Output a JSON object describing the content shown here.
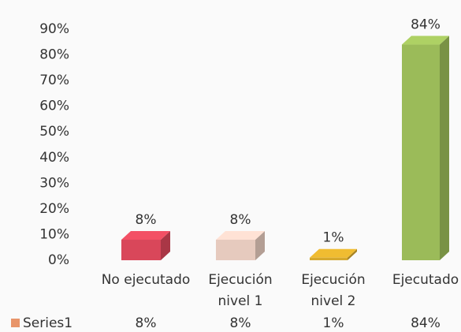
{
  "chart_data": {
    "type": "bar3d",
    "categories": [
      "No ejecutado",
      "Ejecución nivel 1",
      "Ejecución nivel 2",
      "Ejecutado"
    ],
    "series": [
      {
        "name": "Series1",
        "color": "#e8956a",
        "values": [
          8,
          8,
          1,
          84
        ],
        "value_labels": [
          "8%",
          "8%",
          "1%",
          "84%"
        ]
      }
    ],
    "colors": [
      "#d9475a",
      "#e6cabe",
      "#d6a82c",
      "#9bbb59"
    ],
    "ylim": [
      0,
      90
    ],
    "yticks": [
      {
        "value": 0,
        "label": "0%"
      },
      {
        "value": 10,
        "label": "10%"
      },
      {
        "value": 20,
        "label": "20%"
      },
      {
        "value": 30,
        "label": "30%"
      },
      {
        "value": 40,
        "label": "40%"
      },
      {
        "value": 50,
        "label": "50%"
      },
      {
        "value": 60,
        "label": "60%"
      },
      {
        "value": 70,
        "label": "70%"
      },
      {
        "value": 80,
        "label": "80%"
      },
      {
        "value": 90,
        "label": "90%"
      }
    ],
    "grid": false
  }
}
